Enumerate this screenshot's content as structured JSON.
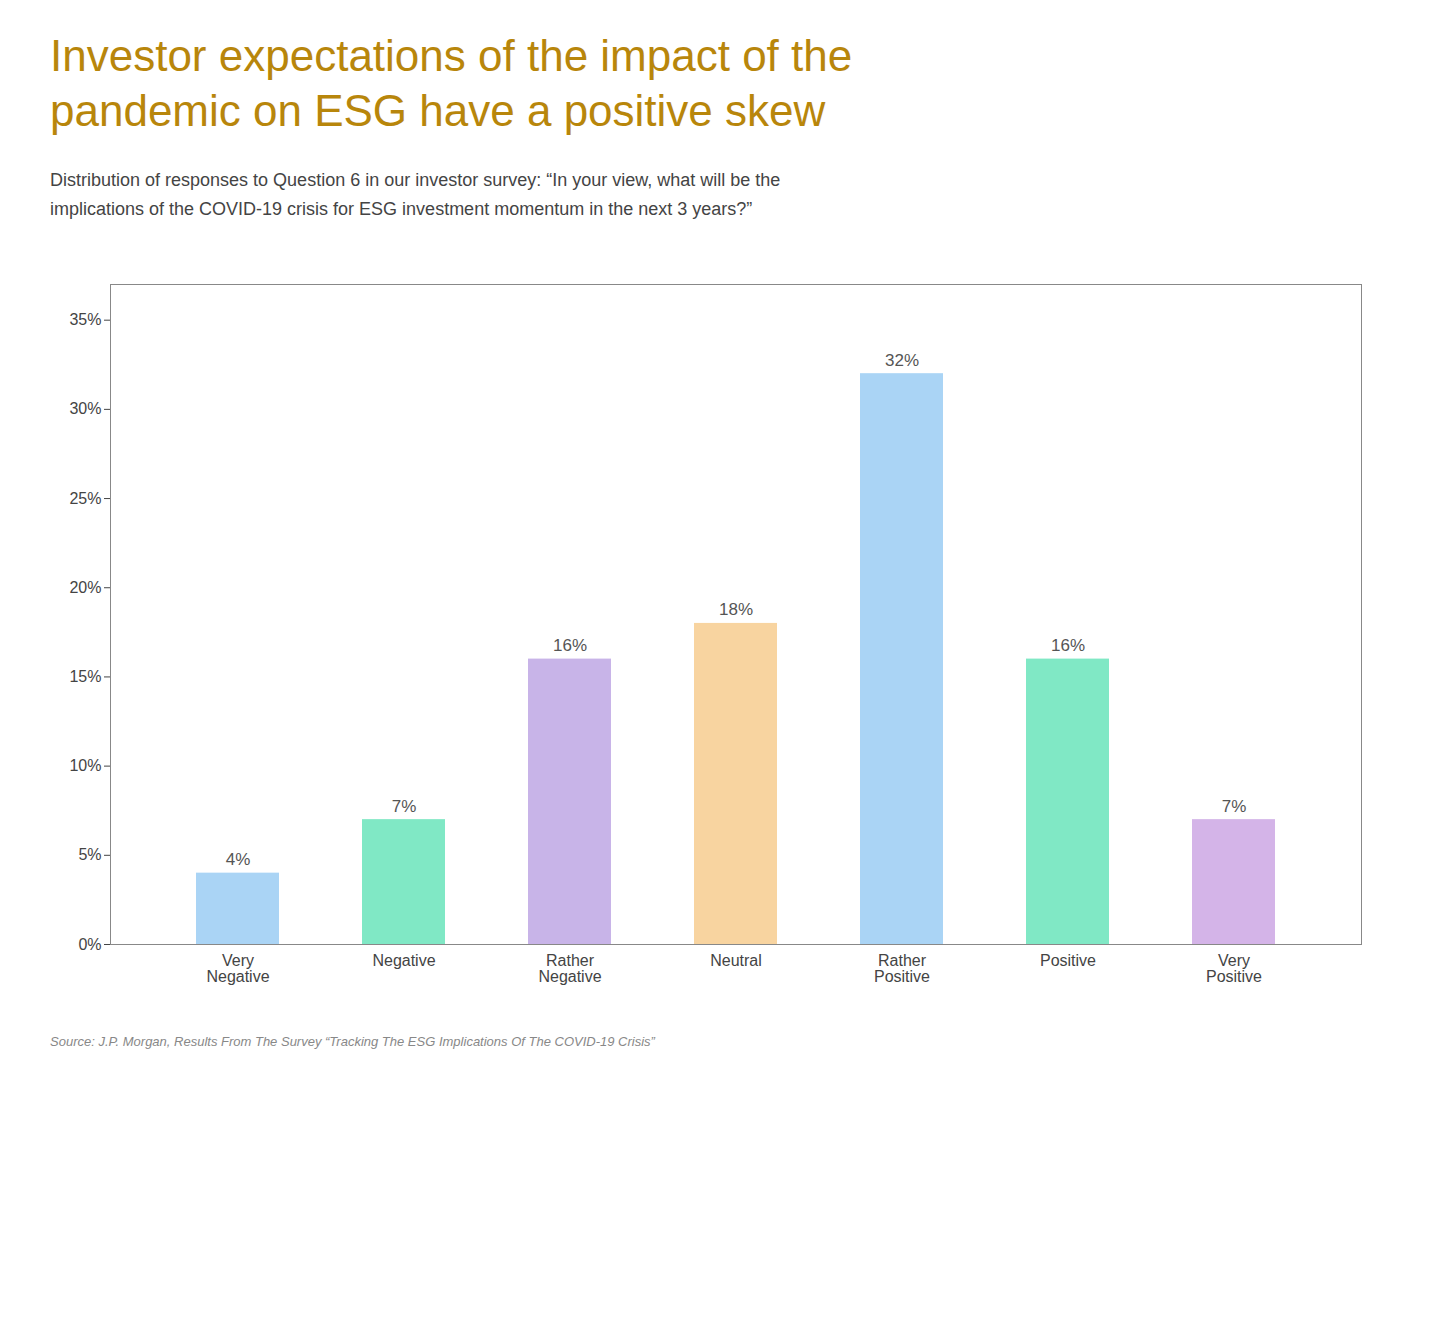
{
  "chart_data": {
    "type": "bar",
    "title": "Investor expectations of the impact of the\npandemic on ESG have a positive skew",
    "subtitle": "Distribution of responses to Question 6 in our investor survey: “In your view, what will be the\nimplications of the COVID-19 crisis for ESG investment momentum in the next 3 years?”",
    "categories": [
      "Very\nNegative",
      "Negative",
      "Rather\nNegative",
      "Neutral",
      "Rather\nPositive",
      "Positive",
      "Very\nPositive"
    ],
    "values": [
      4,
      7,
      16,
      18,
      32,
      16,
      7
    ],
    "value_labels": [
      "4%",
      "7%",
      "16%",
      "18%",
      "32%",
      "16%",
      "7%"
    ],
    "colors": [
      "#aad4f5",
      "#80e8c5",
      "#c8b4e8",
      "#f8d4a0",
      "#aad4f5",
      "#80e8c5",
      "#d4b4e8"
    ],
    "ylim": [
      0,
      37
    ],
    "yticks": [
      {
        "value": 0,
        "label": "0%"
      },
      {
        "value": 5,
        "label": "5%"
      },
      {
        "value": 10,
        "label": "10%"
      },
      {
        "value": 15,
        "label": "15%"
      },
      {
        "value": 20,
        "label": "20%"
      },
      {
        "value": 25,
        "label": "25%"
      },
      {
        "value": 30,
        "label": "30%"
      },
      {
        "value": 35,
        "label": "35%"
      }
    ],
    "grid": false,
    "data_labels": true,
    "source": "Source: J.P. Morgan, Results From The Survey “Tracking The ESG Implications Of The COVID-19 Crisis”"
  }
}
